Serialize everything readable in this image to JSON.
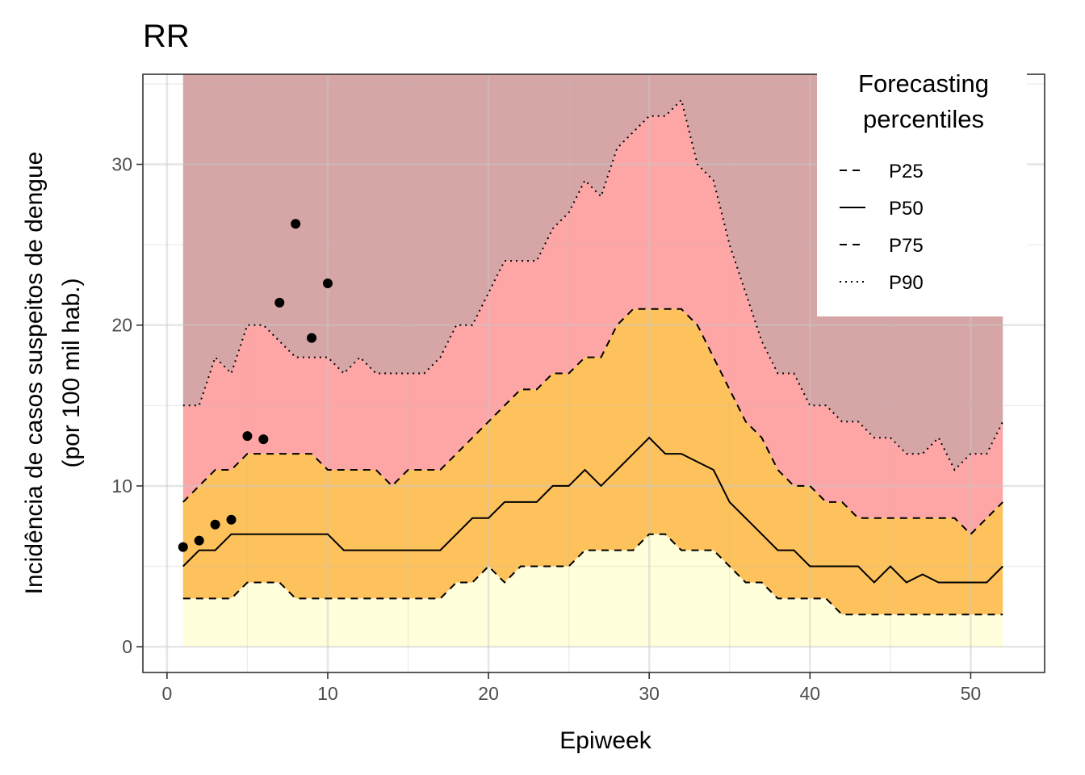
{
  "chart_data": {
    "type": "area",
    "title": "RR",
    "xlabel": "Epiweek",
    "ylabel_line1": "Incidência de casos suspeitos de dengue",
    "ylabel_line2": "(por 100 mil hab.)",
    "xlim": [
      -1.5,
      54.6
    ],
    "ylim": [
      -1.6,
      35.6
    ],
    "x_ticks": [
      0,
      10,
      20,
      30,
      40,
      50
    ],
    "x_tick_labels": [
      "0",
      "10",
      "20",
      "30",
      "40",
      "50"
    ],
    "y_ticks": [
      0,
      10,
      20,
      30
    ],
    "y_tick_labels": [
      "0",
      "10",
      "20",
      "30"
    ],
    "grid": true,
    "legend": {
      "title_line1": "Forecasting",
      "title_line2": "percentiles",
      "position": "top-right",
      "entries": [
        {
          "label": "P25",
          "linetype": "dashed"
        },
        {
          "label": "P50",
          "linetype": "solid"
        },
        {
          "label": "P75",
          "linetype": "dashed"
        },
        {
          "label": "P90",
          "linetype": "dotted"
        }
      ]
    },
    "band_colors": {
      "below_p25": "#ffffdb",
      "p25_p75": "#fdc25c",
      "p75_p90": "#fea5a6",
      "above_p90": "#d6a5a6"
    },
    "band_top": 35.6,
    "x": [
      1,
      2,
      3,
      4,
      5,
      6,
      7,
      8,
      9,
      10,
      11,
      12,
      13,
      14,
      15,
      16,
      17,
      18,
      19,
      20,
      21,
      22,
      23,
      24,
      25,
      26,
      27,
      28,
      29,
      30,
      31,
      32,
      33,
      34,
      35,
      36,
      37,
      38,
      39,
      40,
      41,
      42,
      43,
      44,
      45,
      46,
      47,
      48,
      49,
      50,
      51,
      52
    ],
    "series": [
      {
        "name": "P25",
        "linetype": "dashed",
        "values": [
          3,
          3,
          3,
          3,
          4,
          4,
          4,
          3,
          3,
          3,
          3,
          3,
          3,
          3,
          3,
          3,
          3,
          4,
          4,
          5,
          4,
          5,
          5,
          5,
          5,
          6,
          6,
          6,
          6,
          7,
          7,
          6,
          6,
          6,
          5,
          4,
          4,
          3,
          3,
          3,
          3,
          2,
          2,
          2,
          2,
          2,
          2,
          2,
          2,
          2,
          2,
          2
        ]
      },
      {
        "name": "P50",
        "linetype": "solid",
        "values": [
          5,
          6,
          6,
          7,
          7,
          7,
          7,
          7,
          7,
          7,
          6,
          6,
          6,
          6,
          6,
          6,
          6,
          7,
          8,
          8,
          9,
          9,
          9,
          10,
          10,
          11,
          10,
          11,
          12,
          13,
          12,
          12,
          11.5,
          11,
          9,
          8,
          7,
          6,
          6,
          5,
          5,
          5,
          5,
          4,
          5,
          4,
          4.5,
          4,
          4,
          4,
          4,
          5
        ]
      },
      {
        "name": "P75",
        "linetype": "dashed",
        "values": [
          9,
          10,
          11,
          11,
          12,
          12,
          12,
          12,
          12,
          11,
          11,
          11,
          11,
          10,
          11,
          11,
          11,
          12,
          13,
          14,
          15,
          16,
          16,
          17,
          17,
          18,
          18,
          20,
          21,
          21,
          21,
          21,
          20,
          18,
          16,
          14,
          13,
          11,
          10,
          10,
          9,
          9,
          8,
          8,
          8,
          8,
          8,
          8,
          8,
          7,
          8,
          9
        ]
      },
      {
        "name": "P90",
        "linetype": "dotted",
        "values": [
          15,
          15,
          18,
          17,
          20,
          20,
          19,
          18,
          18,
          18,
          17,
          18,
          17,
          17,
          17,
          17,
          18,
          20,
          20,
          22,
          24,
          24,
          24,
          26,
          27,
          29,
          28,
          31,
          32,
          33,
          33,
          34,
          30,
          29,
          25,
          22,
          19,
          17,
          17,
          15,
          15,
          14,
          14,
          13,
          13,
          12,
          12,
          13,
          11,
          12,
          12,
          14
        ]
      }
    ],
    "observed": {
      "name": "observed",
      "x": [
        1,
        2,
        3,
        4,
        5,
        6,
        7,
        8,
        9,
        10
      ],
      "values": [
        6.2,
        6.6,
        7.6,
        7.9,
        13.1,
        12.9,
        21.4,
        26.3,
        19.2,
        22.6
      ]
    }
  }
}
